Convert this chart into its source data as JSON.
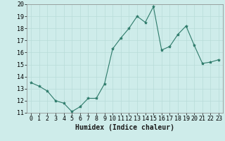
{
  "x": [
    0,
    1,
    2,
    3,
    4,
    5,
    6,
    7,
    8,
    9,
    10,
    11,
    12,
    13,
    14,
    15,
    16,
    17,
    18,
    19,
    20,
    21,
    22,
    23
  ],
  "y": [
    13.5,
    13.2,
    12.8,
    12.0,
    11.8,
    11.1,
    11.5,
    12.2,
    12.2,
    13.4,
    16.3,
    17.2,
    18.0,
    19.0,
    18.5,
    19.8,
    16.2,
    16.5,
    17.5,
    18.2,
    16.6,
    15.1,
    15.2,
    15.4
  ],
  "line_color": "#2d7a6a",
  "marker": "*",
  "marker_size": 3,
  "bg_color": "#ceecea",
  "grid_color": "#b8dcd8",
  "xlabel": "Humidex (Indice chaleur)",
  "ylabel": "",
  "xlim": [
    -0.5,
    23.5
  ],
  "ylim": [
    11,
    20
  ],
  "yticks": [
    11,
    12,
    13,
    14,
    15,
    16,
    17,
    18,
    19,
    20
  ],
  "xtick_labels": [
    "0",
    "1",
    "2",
    "3",
    "4",
    "5",
    "6",
    "7",
    "8",
    "9",
    "10",
    "11",
    "12",
    "13",
    "14",
    "15",
    "16",
    "17",
    "18",
    "19",
    "20",
    "21",
    "22",
    "23"
  ],
  "ytick_labels": [
    "11",
    "12",
    "13",
    "14",
    "15",
    "16",
    "17",
    "18",
    "19",
    "20"
  ],
  "label_fontsize": 7,
  "tick_fontsize": 6
}
